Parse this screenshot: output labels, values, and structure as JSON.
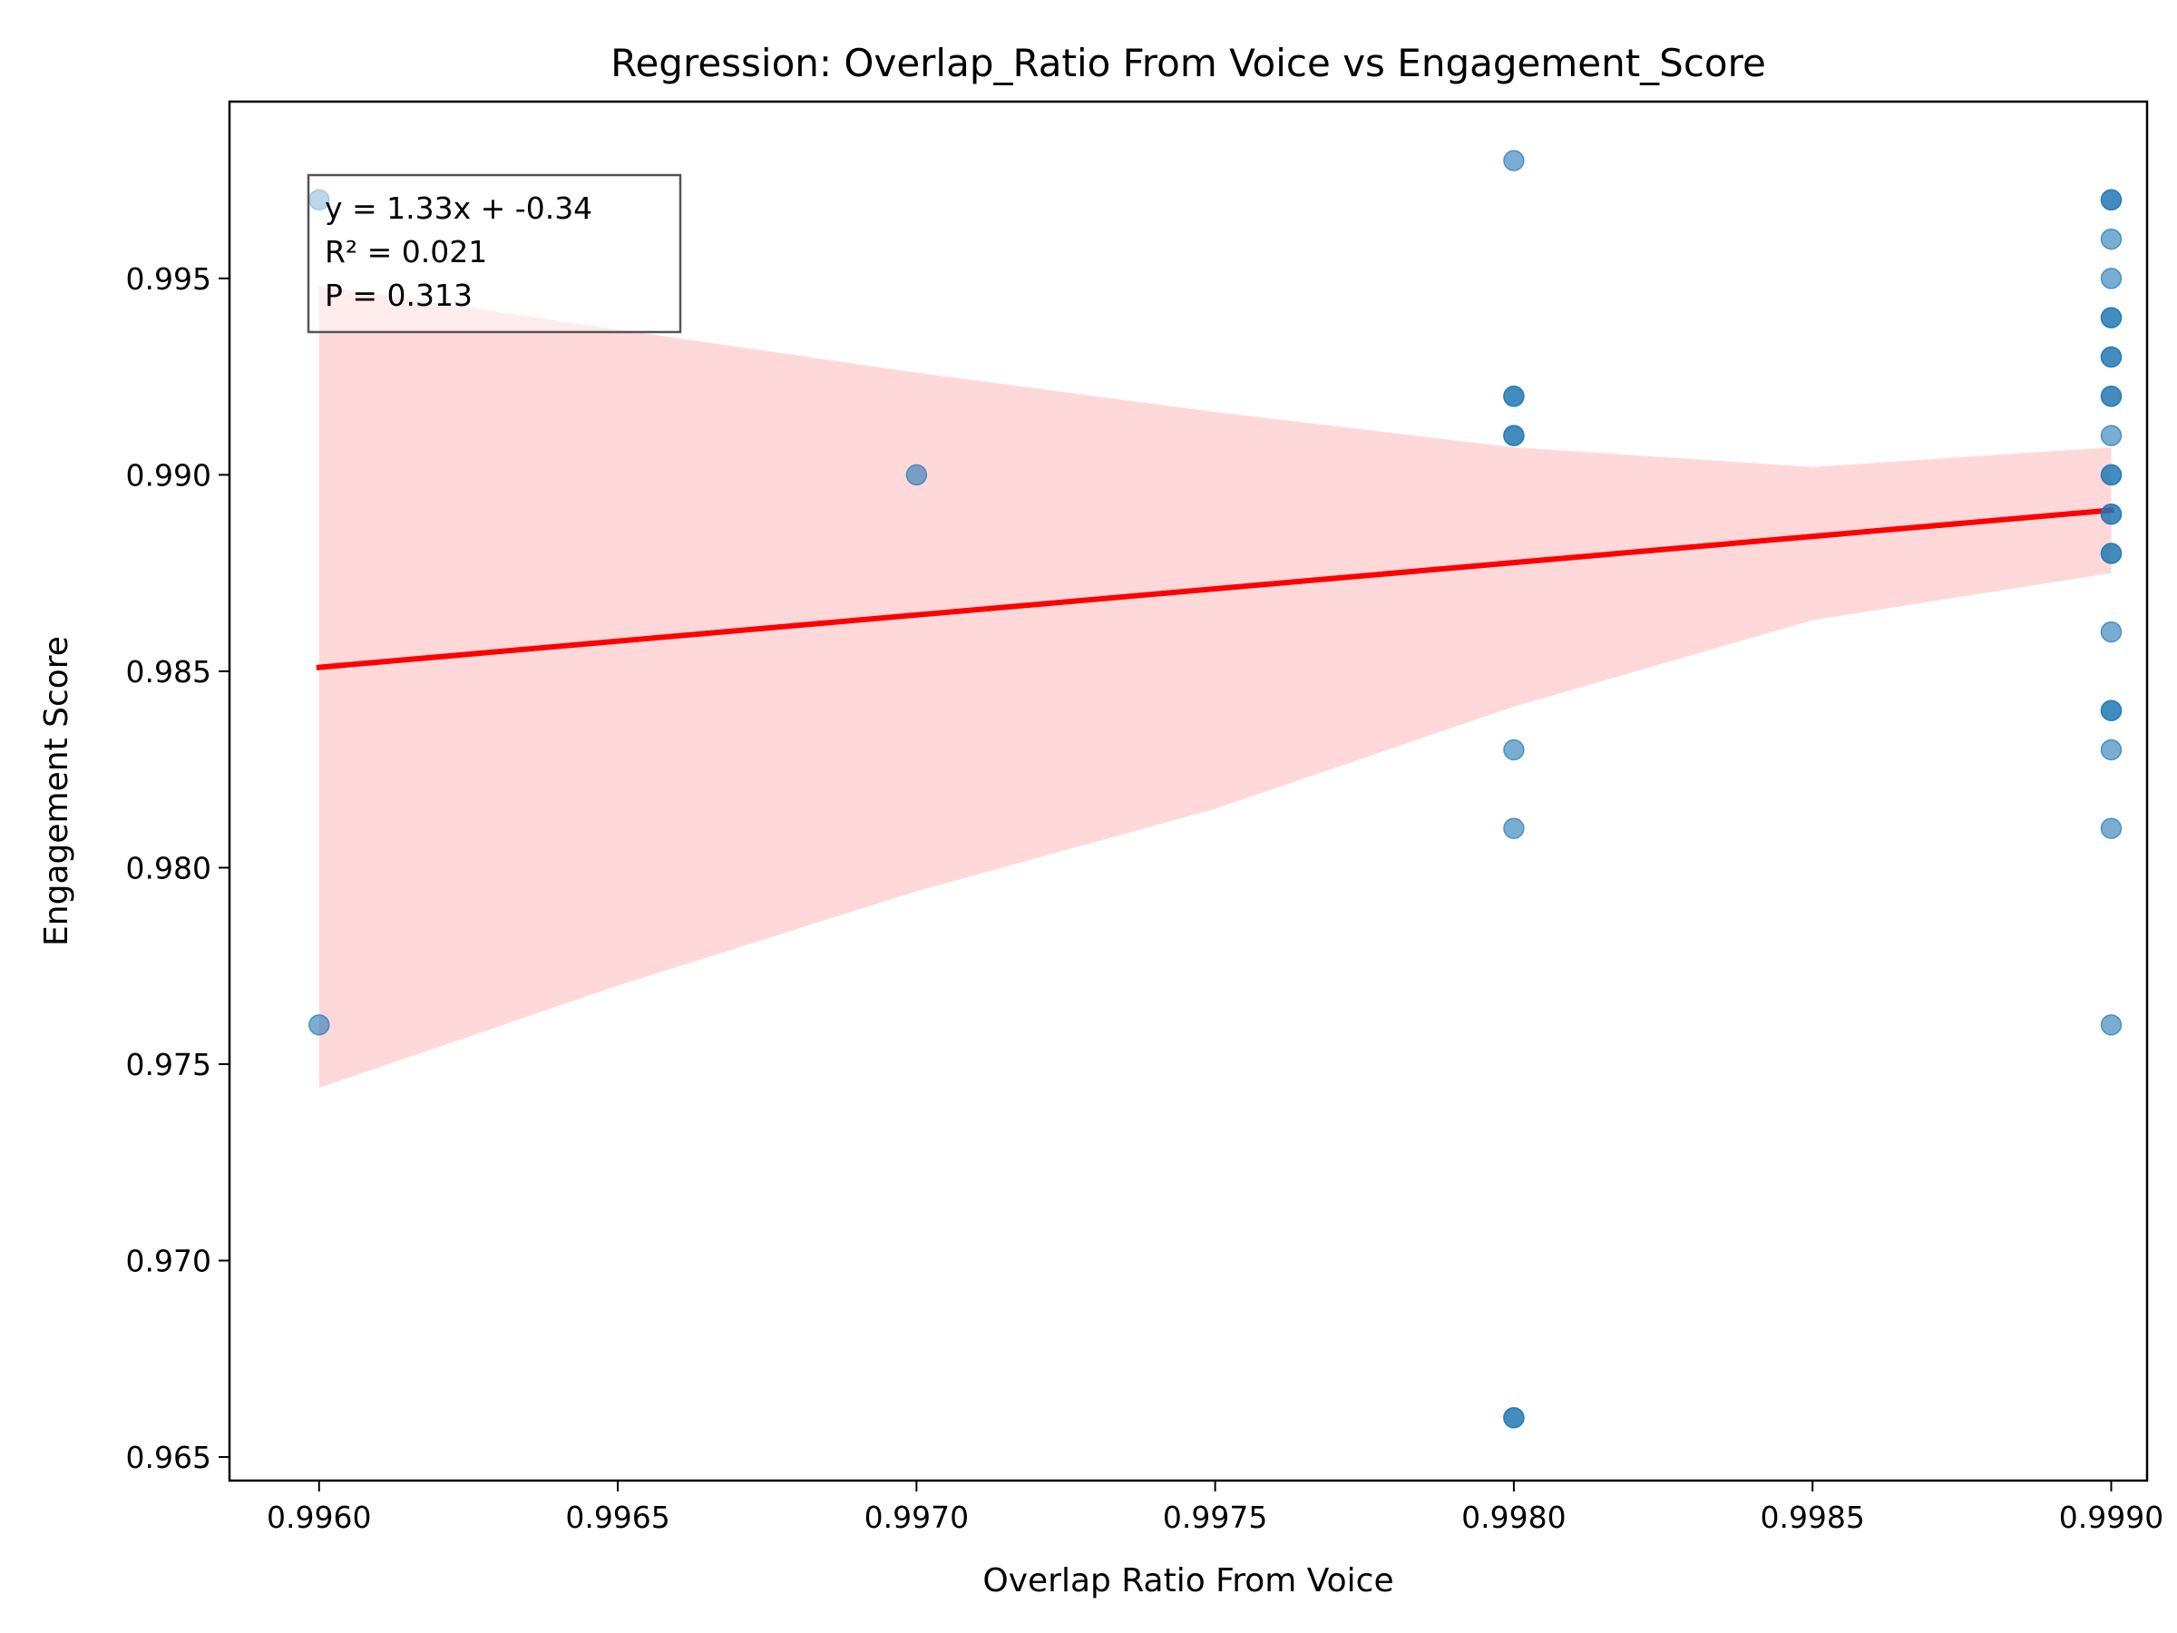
{
  "chart_data": {
    "type": "scatter",
    "title": "Regression: Overlap_Ratio From Voice vs Engagement_Score",
    "xlabel": "Overlap Ratio From Voice",
    "ylabel": "Engagement Score",
    "xlim": [
      0.99585,
      0.99906
    ],
    "ylim": [
      0.9644,
      0.9995
    ],
    "x_ticks": [
      0.996,
      0.9965,
      0.997,
      0.9975,
      0.998,
      0.9985,
      0.999
    ],
    "x_tick_labels": [
      "0.9960",
      "0.9965",
      "0.9970",
      "0.9975",
      "0.9980",
      "0.9985",
      "0.9990"
    ],
    "y_ticks": [
      0.965,
      0.97,
      0.975,
      0.98,
      0.985,
      0.99,
      0.995
    ],
    "y_tick_labels": [
      "0.965",
      "0.970",
      "0.975",
      "0.980",
      "0.985",
      "0.990",
      "0.995"
    ],
    "grid": false,
    "colors": {
      "points": "#1f77b4",
      "regression_line": "#ff0000",
      "confidence_band": "#ffb3b3"
    },
    "series": [
      {
        "type": "scatter",
        "points": [
          {
            "x": 0.996,
            "y": 0.997
          },
          {
            "x": 0.996,
            "y": 0.976
          },
          {
            "x": 0.997,
            "y": 0.99
          },
          {
            "x": 0.998,
            "y": 0.998
          },
          {
            "x": 0.998,
            "y": 0.992
          },
          {
            "x": 0.998,
            "y": 0.992
          },
          {
            "x": 0.998,
            "y": 0.991
          },
          {
            "x": 0.998,
            "y": 0.991
          },
          {
            "x": 0.998,
            "y": 0.983
          },
          {
            "x": 0.998,
            "y": 0.981
          },
          {
            "x": 0.998,
            "y": 0.966
          },
          {
            "x": 0.998,
            "y": 0.966
          },
          {
            "x": 0.999,
            "y": 0.997
          },
          {
            "x": 0.999,
            "y": 0.997
          },
          {
            "x": 0.999,
            "y": 0.996
          },
          {
            "x": 0.999,
            "y": 0.995
          },
          {
            "x": 0.999,
            "y": 0.994
          },
          {
            "x": 0.999,
            "y": 0.994
          },
          {
            "x": 0.999,
            "y": 0.993
          },
          {
            "x": 0.999,
            "y": 0.993
          },
          {
            "x": 0.999,
            "y": 0.992
          },
          {
            "x": 0.999,
            "y": 0.992
          },
          {
            "x": 0.999,
            "y": 0.991
          },
          {
            "x": 0.999,
            "y": 0.99
          },
          {
            "x": 0.999,
            "y": 0.99
          },
          {
            "x": 0.999,
            "y": 0.989
          },
          {
            "x": 0.999,
            "y": 0.989
          },
          {
            "x": 0.999,
            "y": 0.988
          },
          {
            "x": 0.999,
            "y": 0.988
          },
          {
            "x": 0.999,
            "y": 0.986
          },
          {
            "x": 0.999,
            "y": 0.984
          },
          {
            "x": 0.999,
            "y": 0.984
          },
          {
            "x": 0.999,
            "y": 0.983
          },
          {
            "x": 0.999,
            "y": 0.981
          },
          {
            "x": 0.999,
            "y": 0.976
          }
        ]
      },
      {
        "type": "line",
        "x": [
          0.996,
          0.999
        ],
        "y": [
          0.9851,
          0.9891
        ]
      },
      {
        "type": "area",
        "x": [
          0.996,
          0.9965,
          0.997,
          0.9975,
          0.998,
          0.9985,
          0.999
        ],
        "upper": [
          0.9948,
          0.9937,
          0.9926,
          0.9916,
          0.9907,
          0.9902,
          0.9907
        ],
        "lower": [
          0.9744,
          0.977,
          0.9794,
          0.9815,
          0.9841,
          0.9863,
          0.9875
        ]
      }
    ],
    "annotation": {
      "lines": [
        "y = 1.33x + -0.34",
        "R² = 0.021",
        "P = 0.313"
      ]
    }
  }
}
